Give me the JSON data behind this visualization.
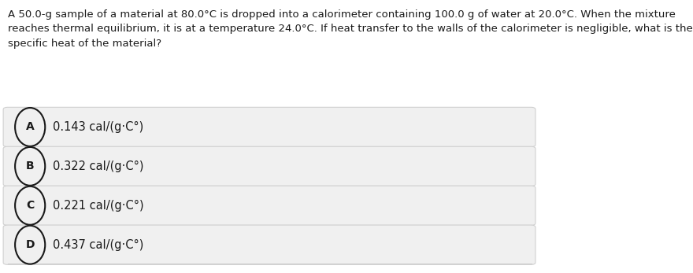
{
  "question": "A 50.0-g sample of a material at 80.0°C is dropped into a calorimeter containing 100.0 g of water at 20.0°C. When the mixture\nreaches thermal equilibrium, it is at a temperature 24.0°C. If heat transfer to the walls of the calorimeter is negligible, what is the\nspecific heat of the material?",
  "options": [
    {
      "letter": "A",
      "text": "0.143 cal/(g·C°)"
    },
    {
      "letter": "B",
      "text": "0.322 cal/(g·C°)"
    },
    {
      "letter": "C",
      "text": "0.221 cal/(g·C°)"
    },
    {
      "letter": "D",
      "text": "0.437 cal/(g·C°)"
    }
  ],
  "bg_color": "#ffffff",
  "option_bg_color": "#f0f0f0",
  "option_border_color": "#d0d0d0",
  "text_color": "#1a1a1a",
  "circle_color": "#1a1a1a",
  "question_fontsize": 9.5,
  "option_fontsize": 10.5,
  "letter_fontsize": 10,
  "bottom_line_color": "#cccccc"
}
